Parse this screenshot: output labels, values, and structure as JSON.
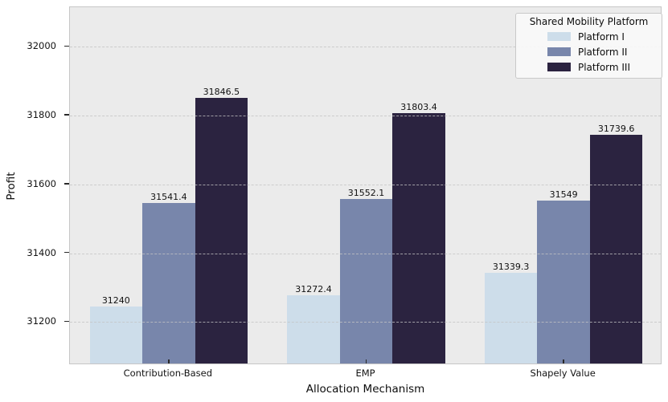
{
  "chart_data": {
    "type": "bar",
    "title": "",
    "xlabel": "Allocation Mechanism",
    "ylabel": "Profit",
    "categories": [
      "Contribution-Based",
      "EMP",
      "Shapely Value"
    ],
    "series": [
      {
        "name": "Platform I",
        "color": "#cdddea",
        "values": [
          31240,
          31272.4,
          31339.3
        ],
        "labels": [
          "31240",
          "31272.4",
          "31339.3"
        ]
      },
      {
        "name": "Platform II",
        "color": "#7886ab",
        "values": [
          31541.4,
          31552.1,
          31549
        ],
        "labels": [
          "31541.4",
          "31552.1",
          "31549"
        ]
      },
      {
        "name": "Platform III",
        "color": "#2b2340",
        "values": [
          31846.5,
          31803.4,
          31739.6
        ],
        "labels": [
          "31846.5",
          "31803.4",
          "31739.6"
        ]
      }
    ],
    "yticks": [
      31200,
      31400,
      31600,
      31800,
      32000
    ],
    "ytick_labels": [
      "31200",
      "31400",
      "31600",
      "31800",
      "32000"
    ],
    "ylim": [
      31075,
      32115
    ],
    "legend_title": "Shared Mobility Platform",
    "legend_position": "upper right",
    "grid": "horizontal dashed",
    "plot_background": "#ebebeb",
    "group_bar_total_width_fraction": 0.8
  }
}
